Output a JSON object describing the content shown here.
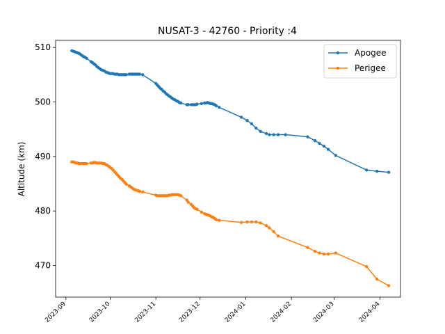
{
  "chart_data": {
    "type": "line",
    "title": "NUSAT-3 - 42760 - Priority :4",
    "xlabel": "",
    "ylabel": "Altitude (km)",
    "ylim": [
      464.2,
      511.3
    ],
    "xlim": [
      "2023-08-25",
      "2024-04-15"
    ],
    "yticks": [
      470,
      480,
      490,
      500,
      510
    ],
    "xticks": [
      "2023-09",
      "2023-10",
      "2023-11",
      "2023-12",
      "2024-01",
      "2024-02",
      "2024-03",
      "2024-04"
    ],
    "legend_position": "upper right",
    "grid": false,
    "series": [
      {
        "name": "Apogee",
        "color": "#1f77b4",
        "points": [
          [
            "2023-09-05",
            509.4
          ],
          [
            "2023-09-06",
            509.3
          ],
          [
            "2023-09-07",
            509.2
          ],
          [
            "2023-09-08",
            509.1
          ],
          [
            "2023-09-09",
            509.0
          ],
          [
            "2023-09-10",
            508.9
          ],
          [
            "2023-09-11",
            508.7
          ],
          [
            "2023-09-12",
            508.5
          ],
          [
            "2023-09-13",
            508.3
          ],
          [
            "2023-09-14",
            508.2
          ],
          [
            "2023-09-15",
            508.0
          ],
          [
            "2023-09-18",
            507.4
          ],
          [
            "2023-09-19",
            507.2
          ],
          [
            "2023-09-20",
            507.0
          ],
          [
            "2023-09-21",
            506.8
          ],
          [
            "2023-09-22",
            506.5
          ],
          [
            "2023-09-23",
            506.3
          ],
          [
            "2023-09-24",
            506.1
          ],
          [
            "2023-09-25",
            505.9
          ],
          [
            "2023-09-26",
            505.8
          ],
          [
            "2023-09-27",
            505.7
          ],
          [
            "2023-09-28",
            505.5
          ],
          [
            "2023-09-29",
            505.4
          ],
          [
            "2023-09-30",
            505.3
          ],
          [
            "2023-10-01",
            505.2
          ],
          [
            "2023-10-02",
            505.2
          ],
          [
            "2023-10-03",
            505.2
          ],
          [
            "2023-10-04",
            505.1
          ],
          [
            "2023-10-05",
            505.1
          ],
          [
            "2023-10-06",
            505.1
          ],
          [
            "2023-10-07",
            505.0
          ],
          [
            "2023-10-08",
            505.0
          ],
          [
            "2023-10-09",
            505.0
          ],
          [
            "2023-10-10",
            505.0
          ],
          [
            "2023-10-11",
            505.0
          ],
          [
            "2023-10-12",
            505.0
          ],
          [
            "2023-10-14",
            505.1
          ],
          [
            "2023-10-15",
            505.1
          ],
          [
            "2023-10-16",
            505.1
          ],
          [
            "2023-10-17",
            505.1
          ],
          [
            "2023-10-18",
            505.1
          ],
          [
            "2023-10-19",
            505.1
          ],
          [
            "2023-10-20",
            505.1
          ],
          [
            "2023-10-21",
            505.1
          ],
          [
            "2023-10-23",
            505.0
          ],
          [
            "2023-11-01",
            503.4
          ],
          [
            "2023-11-02",
            503.1
          ],
          [
            "2023-11-03",
            502.8
          ],
          [
            "2023-11-04",
            502.5
          ],
          [
            "2023-11-05",
            502.3
          ],
          [
            "2023-11-06",
            502.0
          ],
          [
            "2023-11-07",
            501.8
          ],
          [
            "2023-11-08",
            501.5
          ],
          [
            "2023-11-09",
            501.3
          ],
          [
            "2023-11-10",
            501.1
          ],
          [
            "2023-11-11",
            500.9
          ],
          [
            "2023-11-12",
            500.7
          ],
          [
            "2023-11-13",
            500.5
          ],
          [
            "2023-11-14",
            500.4
          ],
          [
            "2023-11-15",
            500.2
          ],
          [
            "2023-11-16",
            500.1
          ],
          [
            "2023-11-17",
            499.9
          ],
          [
            "2023-11-18",
            499.8
          ],
          [
            "2023-11-22",
            499.5
          ],
          [
            "2023-11-23",
            499.5
          ],
          [
            "2023-11-25",
            499.5
          ],
          [
            "2023-11-26",
            499.5
          ],
          [
            "2023-11-27",
            499.5
          ],
          [
            "2023-11-28",
            499.5
          ],
          [
            "2023-11-29",
            499.6
          ],
          [
            "2023-12-02",
            499.7
          ],
          [
            "2023-12-04",
            499.8
          ],
          [
            "2023-12-05",
            499.8
          ],
          [
            "2023-12-06",
            499.9
          ],
          [
            "2023-12-07",
            499.8
          ],
          [
            "2023-12-08",
            499.7
          ],
          [
            "2023-12-09",
            499.7
          ],
          [
            "2023-12-10",
            499.6
          ],
          [
            "2023-12-11",
            499.5
          ],
          [
            "2023-12-12",
            499.3
          ],
          [
            "2023-12-14",
            499.0
          ],
          [
            "2023-12-29",
            497.2
          ],
          [
            "2024-01-02",
            496.6
          ],
          [
            "2024-01-05",
            496.0
          ],
          [
            "2024-01-08",
            495.2
          ],
          [
            "2024-01-11",
            494.6
          ],
          [
            "2024-01-15",
            494.2
          ],
          [
            "2024-01-17",
            494.0
          ],
          [
            "2024-01-20",
            494.0
          ],
          [
            "2024-01-23",
            494.0
          ],
          [
            "2024-01-28",
            494.0
          ],
          [
            "2024-02-12",
            493.6
          ],
          [
            "2024-02-17",
            492.9
          ],
          [
            "2024-02-20",
            492.4
          ],
          [
            "2024-02-23",
            491.9
          ],
          [
            "2024-02-26",
            491.3
          ],
          [
            "2024-03-02",
            490.2
          ],
          [
            "2024-03-23",
            487.5
          ],
          [
            "2024-03-30",
            487.3
          ],
          [
            "2024-04-07",
            487.1
          ]
        ]
      },
      {
        "name": "Perigee",
        "color": "#ff7f0e",
        "points": [
          [
            "2023-09-05",
            489.0
          ],
          [
            "2023-09-06",
            489.0
          ],
          [
            "2023-09-07",
            488.9
          ],
          [
            "2023-09-08",
            488.8
          ],
          [
            "2023-09-09",
            488.8
          ],
          [
            "2023-09-10",
            488.7
          ],
          [
            "2023-09-11",
            488.7
          ],
          [
            "2023-09-12",
            488.7
          ],
          [
            "2023-09-13",
            488.7
          ],
          [
            "2023-09-14",
            488.7
          ],
          [
            "2023-09-15",
            488.7
          ],
          [
            "2023-09-18",
            488.8
          ],
          [
            "2023-09-19",
            488.8
          ],
          [
            "2023-09-20",
            488.9
          ],
          [
            "2023-09-21",
            488.9
          ],
          [
            "2023-09-22",
            488.8
          ],
          [
            "2023-09-23",
            488.8
          ],
          [
            "2023-09-24",
            488.8
          ],
          [
            "2023-09-25",
            488.8
          ],
          [
            "2023-09-26",
            488.7
          ],
          [
            "2023-09-27",
            488.7
          ],
          [
            "2023-09-28",
            488.5
          ],
          [
            "2023-09-29",
            488.4
          ],
          [
            "2023-09-30",
            488.2
          ],
          [
            "2023-10-01",
            488.0
          ],
          [
            "2023-10-02",
            487.8
          ],
          [
            "2023-10-03",
            487.5
          ],
          [
            "2023-10-04",
            487.2
          ],
          [
            "2023-10-05",
            486.9
          ],
          [
            "2023-10-06",
            486.6
          ],
          [
            "2023-10-07",
            486.3
          ],
          [
            "2023-10-08",
            486.0
          ],
          [
            "2023-10-09",
            485.8
          ],
          [
            "2023-10-10",
            485.5
          ],
          [
            "2023-10-11",
            485.2
          ],
          [
            "2023-10-12",
            484.9
          ],
          [
            "2023-10-14",
            484.6
          ],
          [
            "2023-10-15",
            484.4
          ],
          [
            "2023-10-16",
            484.2
          ],
          [
            "2023-10-17",
            484.0
          ],
          [
            "2023-10-18",
            483.9
          ],
          [
            "2023-10-19",
            483.8
          ],
          [
            "2023-10-20",
            483.7
          ],
          [
            "2023-10-21",
            483.6
          ],
          [
            "2023-10-23",
            483.5
          ],
          [
            "2023-11-01",
            482.9
          ],
          [
            "2023-11-02",
            482.8
          ],
          [
            "2023-11-03",
            482.8
          ],
          [
            "2023-11-04",
            482.8
          ],
          [
            "2023-11-05",
            482.8
          ],
          [
            "2023-11-06",
            482.8
          ],
          [
            "2023-11-07",
            482.8
          ],
          [
            "2023-11-08",
            482.8
          ],
          [
            "2023-11-09",
            482.8
          ],
          [
            "2023-11-10",
            482.9
          ],
          [
            "2023-11-11",
            482.9
          ],
          [
            "2023-11-12",
            483.0
          ],
          [
            "2023-11-13",
            483.0
          ],
          [
            "2023-11-14",
            483.0
          ],
          [
            "2023-11-15",
            483.0
          ],
          [
            "2023-11-16",
            483.0
          ],
          [
            "2023-11-17",
            482.9
          ],
          [
            "2023-11-18",
            482.8
          ],
          [
            "2023-11-22",
            482.0
          ],
          [
            "2023-11-23",
            481.6
          ],
          [
            "2023-11-25",
            481.2
          ],
          [
            "2023-11-26",
            480.9
          ],
          [
            "2023-11-27",
            480.6
          ],
          [
            "2023-11-28",
            480.4
          ],
          [
            "2023-11-29",
            480.3
          ],
          [
            "2023-12-02",
            479.8
          ],
          [
            "2023-12-04",
            479.5
          ],
          [
            "2023-12-05",
            479.4
          ],
          [
            "2023-12-06",
            479.3
          ],
          [
            "2023-12-07",
            479.2
          ],
          [
            "2023-12-08",
            479.1
          ],
          [
            "2023-12-09",
            478.9
          ],
          [
            "2023-12-10",
            478.8
          ],
          [
            "2023-12-11",
            478.6
          ],
          [
            "2023-12-12",
            478.4
          ],
          [
            "2023-12-14",
            478.3
          ],
          [
            "2023-12-29",
            477.9
          ],
          [
            "2024-01-02",
            478.0
          ],
          [
            "2024-01-05",
            478.0
          ],
          [
            "2024-01-08",
            478.0
          ],
          [
            "2024-01-11",
            477.8
          ],
          [
            "2024-01-15",
            477.3
          ],
          [
            "2024-01-17",
            476.9
          ],
          [
            "2024-01-20",
            476.2
          ],
          [
            "2024-01-23",
            475.4
          ],
          [
            "2024-02-12",
            473.3
          ],
          [
            "2024-02-17",
            472.6
          ],
          [
            "2024-02-20",
            472.3
          ],
          [
            "2024-02-23",
            472.1
          ],
          [
            "2024-02-26",
            472.1
          ],
          [
            "2024-03-02",
            472.3
          ],
          [
            "2024-03-23",
            469.8
          ],
          [
            "2024-03-30",
            467.5
          ],
          [
            "2024-04-07",
            466.3
          ]
        ]
      }
    ]
  }
}
